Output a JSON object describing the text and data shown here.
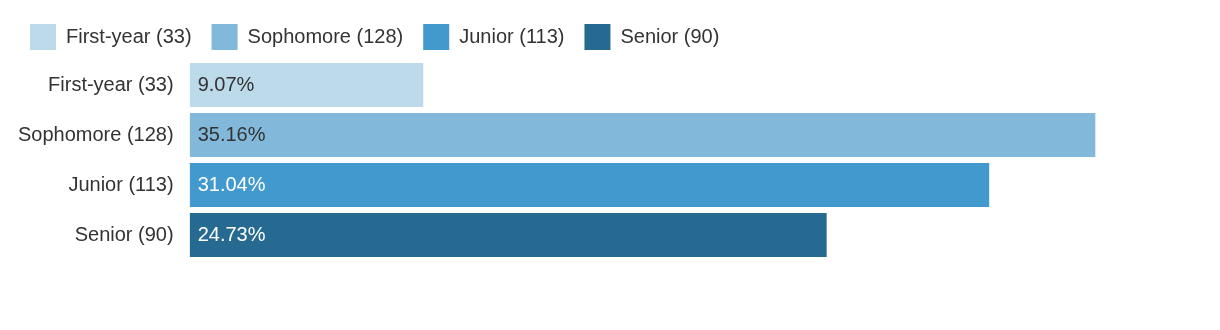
{
  "chart_data": {
    "type": "bar",
    "orientation": "horizontal",
    "categories": [
      "First-year (33)",
      "Sophomore (128)",
      "Junior (113)",
      "Senior (90)"
    ],
    "series": [
      {
        "name": "First-year (33)",
        "color": "#bcdaea",
        "values": [
          9.07,
          null,
          null,
          null
        ],
        "value_labels": [
          "9.07%",
          null,
          null,
          null
        ]
      },
      {
        "name": "Sophomore (128)",
        "color": "#82b9da",
        "values": [
          null,
          35.16,
          null,
          null
        ],
        "value_labels": [
          null,
          "35.16%",
          null,
          null
        ]
      },
      {
        "name": "Junior (113)",
        "color": "#4199ce",
        "values": [
          null,
          null,
          31.04,
          null
        ],
        "value_labels": [
          null,
          null,
          "31.04%",
          null
        ]
      },
      {
        "name": "Senior (90)",
        "color": "#266a91",
        "values": [
          null,
          null,
          null,
          24.73
        ],
        "value_labels": [
          null,
          null,
          null,
          "24.73%"
        ]
      }
    ],
    "legend": "top left",
    "tick_labels": "y"
  }
}
